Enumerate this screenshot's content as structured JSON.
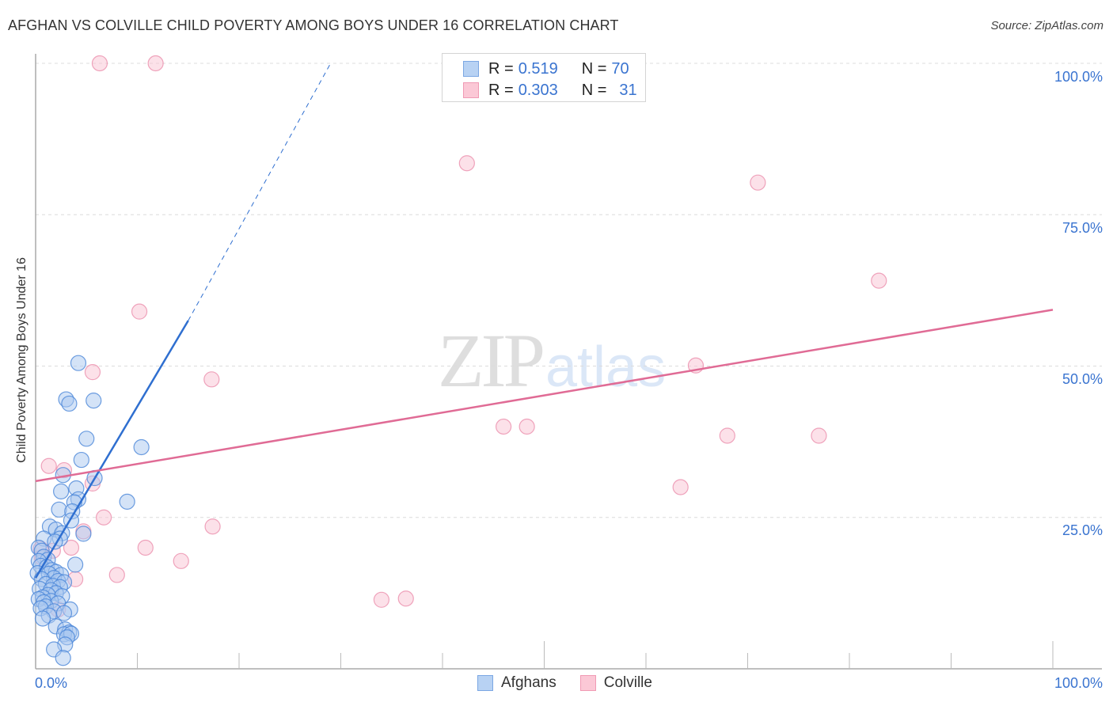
{
  "header": {
    "title": "AFGHAN VS COLVILLE CHILD POVERTY AMONG BOYS UNDER 16 CORRELATION CHART",
    "source": "Source: ZipAtlas.com"
  },
  "watermark": {
    "zip": "ZIP",
    "atlas": "atlas"
  },
  "legend": {
    "rows": [
      {
        "r_label": "R =",
        "r_value": "0.519",
        "n_label": "N =",
        "n_value": "70",
        "color": "#b8d2f3",
        "border": "#7ba7e3"
      },
      {
        "r_label": "R =",
        "r_value": "0.303",
        "n_label": "N =",
        "n_value": "31",
        "color": "#fbc8d6",
        "border": "#f09ab4"
      }
    ]
  },
  "bottom_legend": [
    {
      "label": "Afghans",
      "color": "#b8d2f3",
      "border": "#7ba7e3"
    },
    {
      "label": "Colville",
      "color": "#fbc8d6",
      "border": "#f09ab4"
    }
  ],
  "axes": {
    "x_min_label": "0.0%",
    "x_max_label": "100.0%",
    "y_ticks": [
      "100.0%",
      "75.0%",
      "50.0%",
      "25.0%"
    ],
    "ylabel": "Child Poverty Among Boys Under 16"
  },
  "colors": {
    "afghans_fill": "#a9c8f0",
    "afghans_stroke": "#4a86d8",
    "afghans_line": "#2f6fd0",
    "colville_fill": "#f9c3d3",
    "colville_stroke": "#eb8fad",
    "colville_line": "#e06b95",
    "tick_label": "#3a74d0",
    "grid": "#dcdcdc"
  },
  "chart_data": {
    "type": "scatter",
    "title": "AFGHAN VS COLVILLE CHILD POVERTY AMONG BOYS UNDER 16 CORRELATION CHART",
    "xlabel": "",
    "ylabel": "Child Poverty Among Boys Under 16",
    "xlim": [
      0,
      100
    ],
    "ylim": [
      0,
      100
    ],
    "x_tick_labels": [
      "0.0%",
      "100.0%"
    ],
    "y_tick_labels": [
      "25.0%",
      "50.0%",
      "75.0%",
      "100.0%"
    ],
    "grid": true,
    "legend_position": "top-center",
    "series": [
      {
        "name": "Afghans",
        "r": 0.519,
        "n": 70,
        "trend": {
          "x": [
            0,
            15,
            29
          ],
          "y": [
            15,
            57.5,
            100
          ],
          "solid_until_x": 15
        },
        "points": [
          [
            4.2,
            50.5
          ],
          [
            3.0,
            44.5
          ],
          [
            3.3,
            43.8
          ],
          [
            5.7,
            44.3
          ],
          [
            5.0,
            38.0
          ],
          [
            10.4,
            36.6
          ],
          [
            4.5,
            34.5
          ],
          [
            2.7,
            32.0
          ],
          [
            5.8,
            31.5
          ],
          [
            4.0,
            29.8
          ],
          [
            2.5,
            29.3
          ],
          [
            4.2,
            28.0
          ],
          [
            3.8,
            27.5
          ],
          [
            9.0,
            27.6
          ],
          [
            2.3,
            26.3
          ],
          [
            3.6,
            26.0
          ],
          [
            3.5,
            24.5
          ],
          [
            1.4,
            23.5
          ],
          [
            2.0,
            23.0
          ],
          [
            2.6,
            22.4
          ],
          [
            4.7,
            22.3
          ],
          [
            2.4,
            21.5
          ],
          [
            0.8,
            21.5
          ],
          [
            1.9,
            21.0
          ],
          [
            0.3,
            20.0
          ],
          [
            0.6,
            19.5
          ],
          [
            0.8,
            18.5
          ],
          [
            1.2,
            18.0
          ],
          [
            0.3,
            17.8
          ],
          [
            3.9,
            17.2
          ],
          [
            0.5,
            17.0
          ],
          [
            1.1,
            16.8
          ],
          [
            1.6,
            16.3
          ],
          [
            2.0,
            16.0
          ],
          [
            0.2,
            15.8
          ],
          [
            1.3,
            15.7
          ],
          [
            2.5,
            15.5
          ],
          [
            1.8,
            15.0
          ],
          [
            0.6,
            14.8
          ],
          [
            2.2,
            14.5
          ],
          [
            2.8,
            14.3
          ],
          [
            1.0,
            14.0
          ],
          [
            1.7,
            13.7
          ],
          [
            2.4,
            13.5
          ],
          [
            0.4,
            13.2
          ],
          [
            1.5,
            13.0
          ],
          [
            2.0,
            12.5
          ],
          [
            1.2,
            12.2
          ],
          [
            2.6,
            12.0
          ],
          [
            0.7,
            11.8
          ],
          [
            0.3,
            11.5
          ],
          [
            1.5,
            11.2
          ],
          [
            0.8,
            11.0
          ],
          [
            2.2,
            10.8
          ],
          [
            1.0,
            10.3
          ],
          [
            0.5,
            10.0
          ],
          [
            3.4,
            9.8
          ],
          [
            1.8,
            9.5
          ],
          [
            2.8,
            9.2
          ],
          [
            1.3,
            8.8
          ],
          [
            0.7,
            8.3
          ],
          [
            2.0,
            7.0
          ],
          [
            2.9,
            6.5
          ],
          [
            3.3,
            6.0
          ],
          [
            2.8,
            5.7
          ],
          [
            3.5,
            5.8
          ],
          [
            3.1,
            5.2
          ],
          [
            2.9,
            4.0
          ],
          [
            1.8,
            3.2
          ],
          [
            2.7,
            1.8
          ]
        ]
      },
      {
        "name": "Colville",
        "r": 0.303,
        "n": 31,
        "trend": {
          "x": [
            0,
            100
          ],
          "y": [
            31.0,
            59.3
          ]
        },
        "points": [
          [
            6.3,
            100.0
          ],
          [
            11.8,
            100.0
          ],
          [
            42.4,
            83.5
          ],
          [
            71.0,
            80.3
          ],
          [
            82.9,
            64.1
          ],
          [
            10.2,
            59.0
          ],
          [
            64.9,
            50.1
          ],
          [
            17.3,
            47.8
          ],
          [
            5.6,
            49.0
          ],
          [
            46.0,
            40.0
          ],
          [
            48.3,
            40.0
          ],
          [
            68.0,
            38.5
          ],
          [
            77.0,
            38.5
          ],
          [
            1.3,
            33.5
          ],
          [
            2.8,
            32.8
          ],
          [
            5.6,
            30.6
          ],
          [
            63.4,
            30.0
          ],
          [
            6.7,
            25.0
          ],
          [
            17.4,
            23.5
          ],
          [
            4.7,
            22.7
          ],
          [
            10.8,
            20.0
          ],
          [
            3.5,
            20.0
          ],
          [
            1.7,
            19.5
          ],
          [
            0.5,
            19.8
          ],
          [
            14.3,
            17.8
          ],
          [
            8.0,
            15.5
          ],
          [
            3.9,
            14.8
          ],
          [
            34.0,
            11.4
          ],
          [
            36.4,
            11.6
          ],
          [
            2.2,
            9.8
          ],
          [
            0.6,
            18.4
          ]
        ]
      }
    ]
  }
}
